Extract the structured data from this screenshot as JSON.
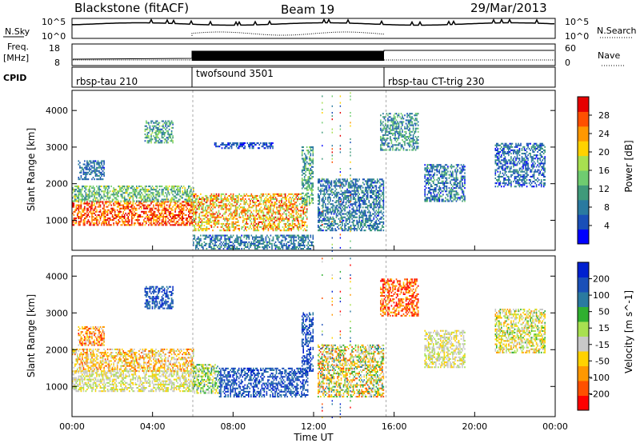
{
  "header": {
    "station": "Blackstone (fitACF)",
    "beam": "Beam 19",
    "date": "29/Mar/2013"
  },
  "top_panels": {
    "nsky_label": "N.Sky",
    "nsky_ticks": [
      "10^5",
      "10^0"
    ],
    "nsearch_label": "N.Search",
    "nsearch_ticks": [
      "10^5",
      "10^0"
    ],
    "freq_label": "Freq.",
    "freq_unit": "[MHz]",
    "freq_ticks": [
      "18",
      "8"
    ],
    "nave_label": "Nave",
    "nave_ticks": [
      "60",
      "0"
    ],
    "cpid_label": "CPID",
    "cpid_segments": [
      {
        "label": "rbsp-tau 210",
        "start": 0,
        "end": 6
      },
      {
        "label": "twofsound 3501",
        "start": 6,
        "end": 15.6
      },
      {
        "label": "rbsp-tau CT-trig 230",
        "start": 15.6,
        "end": 24
      }
    ]
  },
  "chart_data": [
    {
      "type": "heatmap",
      "name": "power-panel",
      "ylabel": "Slant Range [km]",
      "xlabel": "Time UT",
      "x_ticks": [
        "00:00",
        "04:00",
        "08:00",
        "12:00",
        "16:00",
        "20:00",
        "00:00"
      ],
      "x_tick_hours": [
        0,
        4,
        8,
        12,
        16,
        20,
        24
      ],
      "y_ticks": [
        "1000",
        "2000",
        "3000",
        "4000"
      ],
      "y_tick_values": [
        1000,
        2000,
        3000,
        4000
      ],
      "xlim": [
        0,
        24
      ],
      "ylim": [
        180,
        4550
      ],
      "colorbar": {
        "label": "Power [dB]",
        "ticks": [
          "28",
          "24",
          "20",
          "16",
          "12",
          "8",
          "4"
        ],
        "range": [
          0,
          32
        ],
        "colors": [
          "#0000ff",
          "#1a4fb8",
          "#2a7aa0",
          "#3f9a7a",
          "#6fcc70",
          "#a8e050",
          "#ffd200",
          "#ff9800",
          "#ff5000",
          "#e60000"
        ]
      },
      "regions": [
        {
          "t0": 0.0,
          "t1": 6.0,
          "r0": 850,
          "r1": 1500,
          "level": 27,
          "spread": 6
        },
        {
          "t0": 0.0,
          "t1": 6.0,
          "r0": 1500,
          "r1": 1950,
          "level": 14,
          "spread": 6
        },
        {
          "t0": 0.3,
          "t1": 1.6,
          "r0": 2100,
          "r1": 2600,
          "level": 7,
          "spread": 4
        },
        {
          "t0": 3.6,
          "t1": 5.0,
          "r0": 3100,
          "r1": 3700,
          "level": 11,
          "spread": 6
        },
        {
          "t0": 6.0,
          "t1": 11.7,
          "r0": 700,
          "r1": 1700,
          "level": 22,
          "spread": 8
        },
        {
          "t0": 6.0,
          "t1": 12.0,
          "r0": 200,
          "r1": 600,
          "level": 8,
          "spread": 5
        },
        {
          "t0": 11.4,
          "t1": 12.0,
          "r0": 1400,
          "r1": 3000,
          "level": 12,
          "spread": 6
        },
        {
          "t0": 12.2,
          "t1": 15.5,
          "r0": 700,
          "r1": 2100,
          "level": 8,
          "spread": 5
        },
        {
          "t0": 7.0,
          "t1": 10.0,
          "r0": 2950,
          "r1": 3100,
          "level": 5,
          "spread": 3
        },
        {
          "t0": 15.3,
          "t1": 17.2,
          "r0": 2900,
          "r1": 3900,
          "level": 10,
          "spread": 6
        },
        {
          "t0": 17.5,
          "t1": 19.5,
          "r0": 1500,
          "r1": 2500,
          "level": 8,
          "spread": 6
        },
        {
          "t0": 21.0,
          "t1": 23.5,
          "r0": 1900,
          "r1": 3100,
          "level": 7,
          "spread": 5
        }
      ]
    },
    {
      "type": "heatmap",
      "name": "velocity-panel",
      "ylabel": "Slant Range [km]",
      "xlabel": "Time UT",
      "x_ticks": [
        "00:00",
        "04:00",
        "08:00",
        "12:00",
        "16:00",
        "20:00",
        "00:00"
      ],
      "x_tick_hours": [
        0,
        4,
        8,
        12,
        16,
        20,
        24
      ],
      "y_ticks": [
        "1000",
        "2000",
        "3000",
        "4000"
      ],
      "y_tick_values": [
        1000,
        2000,
        3000,
        4000
      ],
      "xlim": [
        0,
        24
      ],
      "ylim": [
        180,
        4550
      ],
      "colorbar": {
        "label": "Velocity [m s^-1]",
        "ticks": [
          "200",
          "100",
          "50",
          "15",
          "-15",
          "-50",
          "-100",
          "-200"
        ],
        "colors": [
          "#ff0000",
          "#ff5000",
          "#ff9800",
          "#ffd200",
          "#c8c8c8",
          "#a8e050",
          "#30b030",
          "#2a7aa0",
          "#1a4fb8",
          "#0020d0"
        ]
      },
      "regions": [
        {
          "t0": 0.0,
          "t1": 6.0,
          "r0": 850,
          "r1": 1400,
          "level": 4,
          "spread": 1
        },
        {
          "t0": 0.0,
          "t1": 6.0,
          "r0": 1400,
          "r1": 2000,
          "level": 3,
          "spread": 2
        },
        {
          "t0": 0.3,
          "t1": 1.6,
          "r0": 2100,
          "r1": 2600,
          "level": 2,
          "spread": 2
        },
        {
          "t0": 3.6,
          "t1": 5.0,
          "r0": 3100,
          "r1": 3700,
          "level": 8,
          "spread": 1
        },
        {
          "t0": 6.0,
          "t1": 7.3,
          "r0": 800,
          "r1": 1600,
          "level": 5,
          "spread": 2
        },
        {
          "t0": 7.3,
          "t1": 11.7,
          "r0": 700,
          "r1": 1500,
          "level": 8,
          "spread": 1
        },
        {
          "t0": 11.4,
          "t1": 12.0,
          "r0": 1400,
          "r1": 3000,
          "level": 8,
          "spread": 1
        },
        {
          "t0": 12.2,
          "t1": 15.5,
          "r0": 700,
          "r1": 2100,
          "level": 4,
          "spread": 3
        },
        {
          "t0": 15.3,
          "t1": 17.2,
          "r0": 2900,
          "r1": 3900,
          "level": 1,
          "spread": 2
        },
        {
          "t0": 17.5,
          "t1": 19.5,
          "r0": 1500,
          "r1": 2500,
          "level": 4,
          "spread": 1
        },
        {
          "t0": 21.0,
          "t1": 23.5,
          "r0": 1900,
          "r1": 3100,
          "level": 4,
          "spread": 2
        }
      ]
    }
  ]
}
